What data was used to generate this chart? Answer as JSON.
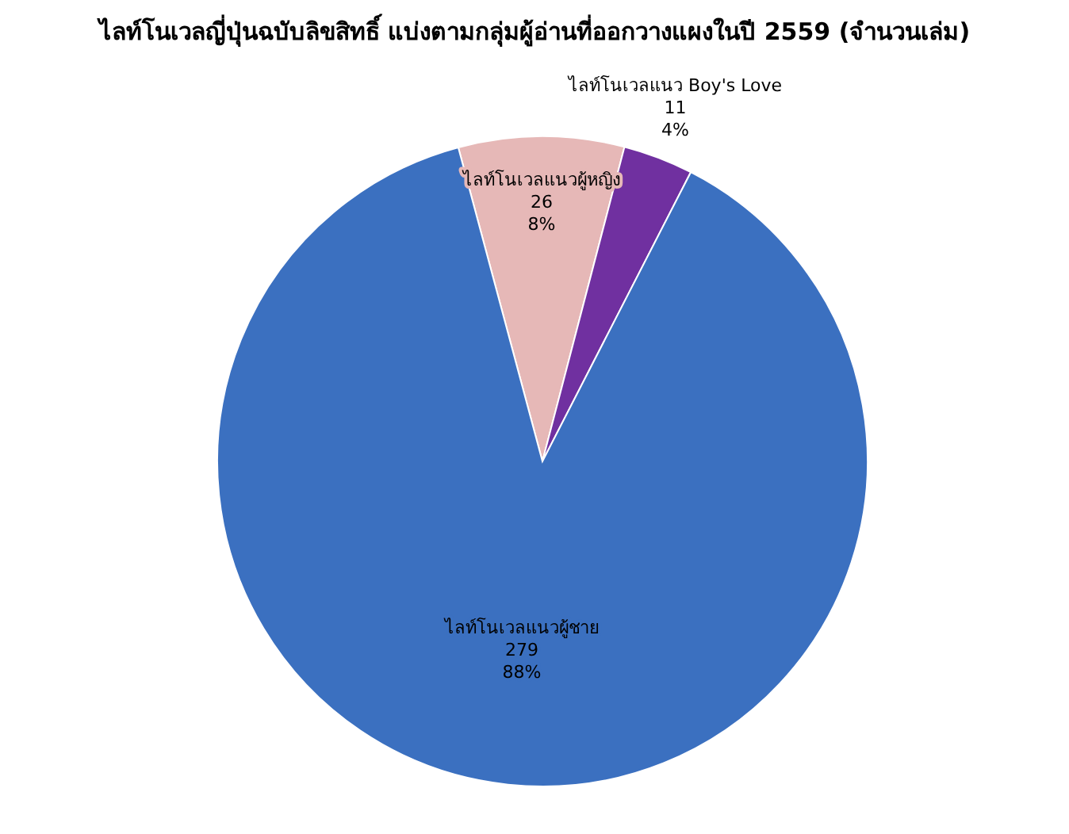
{
  "chart_data": {
    "type": "pie",
    "title": "ไลท์โนเวลญี่ปุ่นฉบับลิขสิทธิ์ แบ่งตามกลุ่มผู้อ่านที่ออกวางแผงในปี 2559 (จำนวนเล่ม)",
    "categories": [
      "ไลท์โนเวลแนวผู้หญิง",
      "ไลท์โนเวลแนว Boy's Love",
      "ไลท์โนเวลแนวผู้ชาย"
    ],
    "values": [
      26,
      11,
      279
    ],
    "colors": [
      "#e6b8b7",
      "#7030a0",
      "#3b70c0"
    ],
    "value_labels": [
      "26\n8%",
      "11\n4%",
      "279\n88%"
    ]
  }
}
